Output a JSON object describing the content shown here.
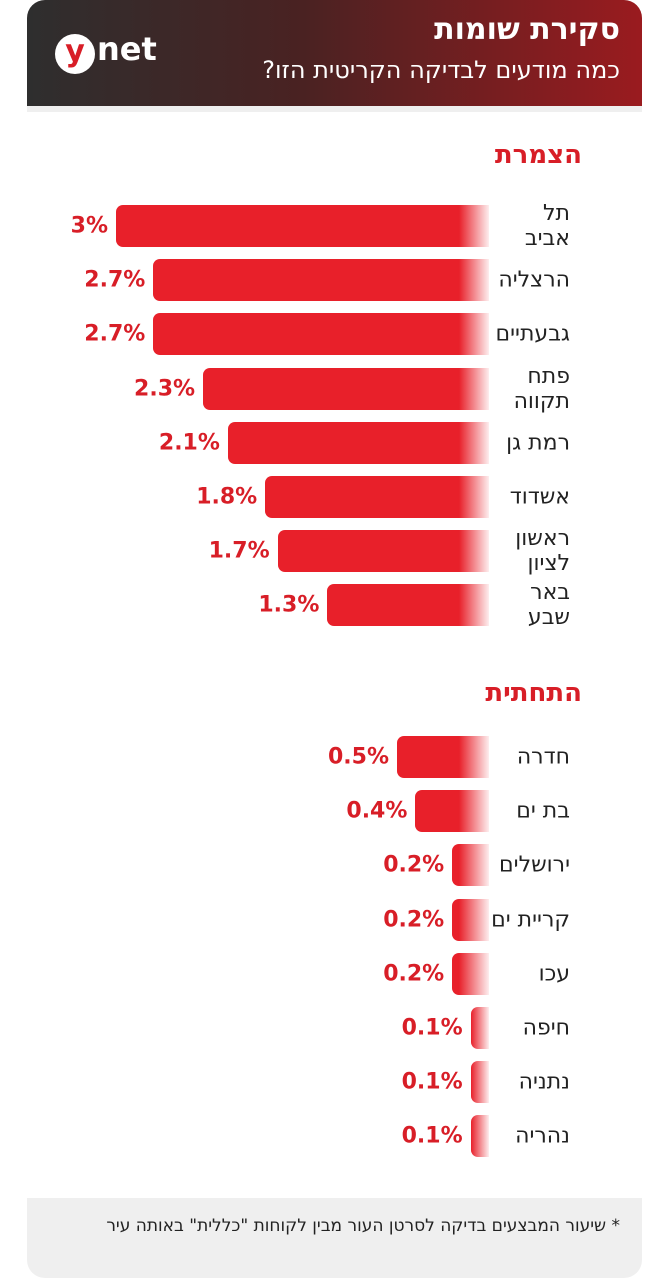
{
  "header": {
    "title": "סקירת שומות",
    "subtitle": "כמה מודעים לבדיקה הקריטית הזו?",
    "logo_y": "y",
    "logo_net": "net"
  },
  "chart_data": [
    {
      "type": "bar",
      "title": "הצמרת",
      "color": "#e8202a",
      "categories": [
        "תל\nאביב",
        "הרצליה",
        "גבעתיים",
        "פתח\nתקווה",
        "רמת גן",
        "אשדוד",
        "ראשון\nלציון",
        "באר\nשבע"
      ],
      "values": [
        3,
        2.7,
        2.7,
        2.3,
        2.1,
        1.8,
        1.7,
        1.3
      ],
      "value_labels": [
        "3%",
        "2.7%",
        "2.7%",
        "2.3%",
        "2.1%",
        "1.8%",
        "1.7%",
        "1.3%"
      ]
    },
    {
      "type": "bar",
      "title": "התחתית",
      "color": "#e8202a",
      "categories": [
        "חדרה",
        "בת ים",
        "ירושלים",
        "קריית ים",
        "עכו",
        "חיפה",
        "נתניה",
        "נהריה"
      ],
      "values": [
        0.5,
        0.4,
        0.2,
        0.2,
        0.2,
        0.1,
        0.1,
        0.1
      ],
      "value_labels": [
        "0.5%",
        "0.4%",
        "0.2%",
        "0.2%",
        "0.2%",
        "0.1%",
        "0.1%",
        "0.1%"
      ]
    }
  ],
  "footnote": "* שיעור המבצעים בדיקה לסרטן העור מבין לקוחות \"כללית\" באותה עיר"
}
